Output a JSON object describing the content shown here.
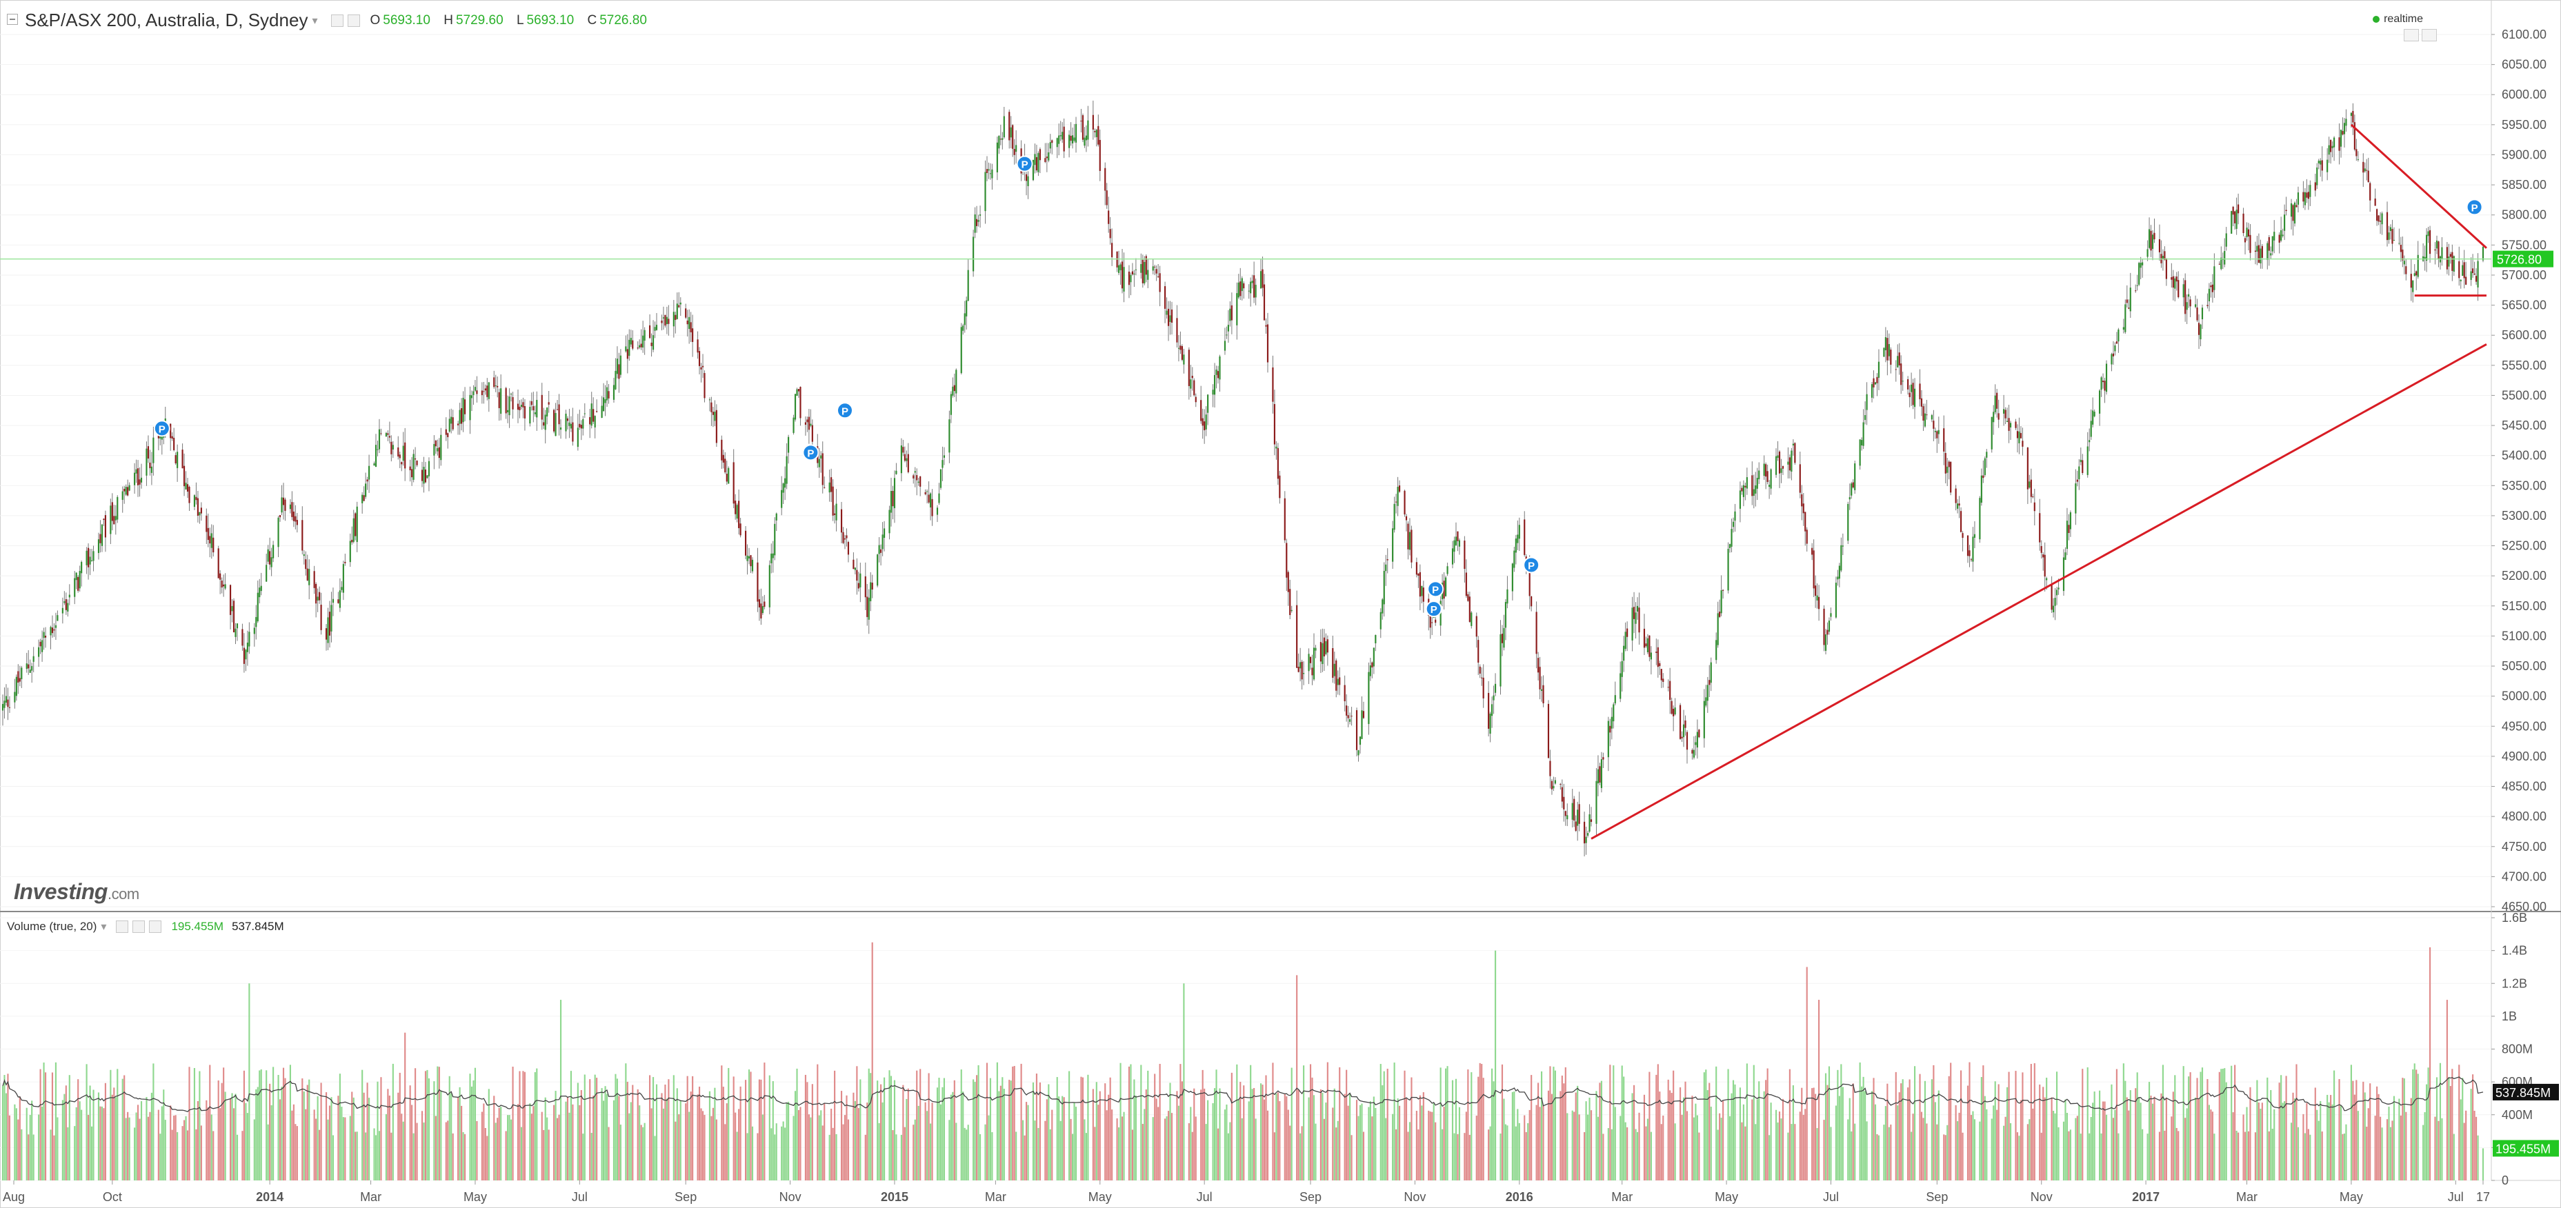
{
  "header": {
    "symbol_title": "S&P/ASX 200, Australia, D, Sydney",
    "ohlc": [
      {
        "k": "O",
        "v": "5693.10"
      },
      {
        "k": "H",
        "v": "5729.60"
      },
      {
        "k": "L",
        "v": "5693.10"
      },
      {
        "k": "C",
        "v": "5726.80"
      }
    ],
    "realtime_label": "realtime"
  },
  "volume_header": {
    "title": "Volume (true, 20)",
    "value_volume": "195.455M",
    "value_ma": "537.845M"
  },
  "logo": {
    "brand": "Investing",
    "suffix": ".com"
  },
  "colors": {
    "up": "#2e8b2e",
    "down": "#8b1a1a",
    "vol_up": "#8fd88f",
    "vol_down": "#e08a8a",
    "trendline": "#d81c24",
    "last_price": "#22c722",
    "vol_ma_line": "#444444"
  },
  "chart_data": [
    {
      "type": "candlestick",
      "title": "S&P/ASX 200, Australia, D, Sydney",
      "ylim": [
        4650,
        6100
      ],
      "y_ticks": [
        "6100.00",
        "6050.00",
        "6000.00",
        "5950.00",
        "5900.00",
        "5850.00",
        "5800.00",
        "5750.00",
        "5700.00",
        "5650.00",
        "5600.00",
        "5550.00",
        "5500.00",
        "5450.00",
        "5400.00",
        "5350.00",
        "5300.00",
        "5250.00",
        "5200.00",
        "5150.00",
        "5100.00",
        "5050.00",
        "5000.00",
        "4950.00",
        "4900.00",
        "4850.00",
        "4800.00",
        "4750.00",
        "4700.00",
        "4650.00"
      ],
      "x_ticks": [
        "Aug",
        "Oct",
        "2014",
        "Mar",
        "May",
        "Jul",
        "Sep",
        "Nov",
        "2015",
        "Mar",
        "May",
        "Jul",
        "Sep",
        "Nov",
        "2016",
        "Mar",
        "May",
        "Jul",
        "Sep",
        "Nov",
        "2017",
        "Mar",
        "May",
        "Jul",
        "17"
      ],
      "x_range": [
        "2013-07-29",
        "2017-07-17"
      ],
      "last_price": 5726.8,
      "last_price_label": "5726.80",
      "close_anchors": [
        {
          "date": "2013-07-29",
          "close": 4980
        },
        {
          "date": "2013-09-01",
          "close": 5140
        },
        {
          "date": "2013-10-01",
          "close": 5300
        },
        {
          "date": "2013-11-01",
          "close": 5440
        },
        {
          "date": "2013-11-28",
          "close": 5250
        },
        {
          "date": "2013-12-17",
          "close": 5070
        },
        {
          "date": "2014-01-10",
          "close": 5330
        },
        {
          "date": "2014-02-03",
          "close": 5100
        },
        {
          "date": "2014-03-05",
          "close": 5430
        },
        {
          "date": "2014-04-01",
          "close": 5370
        },
        {
          "date": "2014-05-01",
          "close": 5510
        },
        {
          "date": "2014-06-01",
          "close": 5480
        },
        {
          "date": "2014-07-01",
          "close": 5440
        },
        {
          "date": "2014-08-01",
          "close": 5580
        },
        {
          "date": "2014-09-01",
          "close": 5640
        },
        {
          "date": "2014-10-16",
          "close": 5140
        },
        {
          "date": "2014-11-05",
          "close": 5500
        },
        {
          "date": "2014-12-16",
          "close": 5150
        },
        {
          "date": "2015-01-05",
          "close": 5400
        },
        {
          "date": "2015-01-25",
          "close": 5300
        },
        {
          "date": "2015-02-18",
          "close": 5800
        },
        {
          "date": "2015-03-05",
          "close": 5950
        },
        {
          "date": "2015-03-20",
          "close": 5870
        },
        {
          "date": "2015-04-27",
          "close": 5960
        },
        {
          "date": "2015-05-10",
          "close": 5700
        },
        {
          "date": "2015-06-01",
          "close": 5700
        },
        {
          "date": "2015-07-01",
          "close": 5460
        },
        {
          "date": "2015-07-20",
          "close": 5670
        },
        {
          "date": "2015-08-03",
          "close": 5690
        },
        {
          "date": "2015-08-24",
          "close": 5030
        },
        {
          "date": "2015-09-10",
          "close": 5080
        },
        {
          "date": "2015-09-29",
          "close": 4920
        },
        {
          "date": "2015-10-22",
          "close": 5340
        },
        {
          "date": "2015-11-10",
          "close": 5100
        },
        {
          "date": "2015-11-26",
          "close": 5260
        },
        {
          "date": "2015-12-14",
          "close": 4960
        },
        {
          "date": "2016-01-02",
          "close": 5300
        },
        {
          "date": "2016-01-20",
          "close": 4850
        },
        {
          "date": "2016-02-10",
          "close": 4770
        },
        {
          "date": "2016-03-07",
          "close": 5150
        },
        {
          "date": "2016-03-28",
          "close": 5000
        },
        {
          "date": "2016-04-12",
          "close": 4890
        },
        {
          "date": "2016-05-09",
          "close": 5340
        },
        {
          "date": "2016-06-10",
          "close": 5400
        },
        {
          "date": "2016-06-27",
          "close": 5090
        },
        {
          "date": "2016-07-20",
          "close": 5460
        },
        {
          "date": "2016-08-01",
          "close": 5580
        },
        {
          "date": "2016-08-31",
          "close": 5450
        },
        {
          "date": "2016-09-20",
          "close": 5230
        },
        {
          "date": "2016-10-05",
          "close": 5480
        },
        {
          "date": "2016-10-20",
          "close": 5420
        },
        {
          "date": "2016-11-08",
          "close": 5150
        },
        {
          "date": "2016-11-20",
          "close": 5340
        },
        {
          "date": "2016-12-05",
          "close": 5500
        },
        {
          "date": "2017-01-03",
          "close": 5760
        },
        {
          "date": "2017-01-15",
          "close": 5700
        },
        {
          "date": "2017-02-01",
          "close": 5620
        },
        {
          "date": "2017-02-21",
          "close": 5800
        },
        {
          "date": "2017-03-10",
          "close": 5720
        },
        {
          "date": "2017-04-05",
          "close": 5840
        },
        {
          "date": "2017-05-01",
          "close": 5950
        },
        {
          "date": "2017-05-15",
          "close": 5800
        },
        {
          "date": "2017-06-05",
          "close": 5700
        },
        {
          "date": "2017-06-15",
          "close": 5760
        },
        {
          "date": "2017-06-30",
          "close": 5720
        },
        {
          "date": "2017-07-10",
          "close": 5690
        },
        {
          "date": "2017-07-17",
          "close": 5727
        }
      ],
      "trendlines": [
        {
          "name": "support",
          "from": {
            "date": "2016-02-12",
            "price": 4763
          },
          "to": {
            "date": "2017-07-19",
            "price": 5585
          }
        },
        {
          "name": "resistance",
          "from": {
            "date": "2017-05-01",
            "price": 5950
          },
          "to": {
            "date": "2017-07-19",
            "price": 5745
          }
        },
        {
          "name": "horizontal-support",
          "from": {
            "date": "2017-06-07",
            "price": 5666
          },
          "to": {
            "date": "2017-07-19",
            "price": 5666
          }
        }
      ],
      "markers": [
        {
          "date": "2013-10-30",
          "price": 5445,
          "label": "P"
        },
        {
          "date": "2014-11-13",
          "price": 5405,
          "label": "P"
        },
        {
          "date": "2014-12-03",
          "price": 5475,
          "label": "P"
        },
        {
          "date": "2015-03-18",
          "price": 5885,
          "label": "P"
        },
        {
          "date": "2015-11-13",
          "price": 5178,
          "label": "P"
        },
        {
          "date": "2015-11-12",
          "price": 5145,
          "label": "P"
        },
        {
          "date": "2016-01-08",
          "price": 5218,
          "label": "P"
        },
        {
          "date": "2017-07-12",
          "price": 5813,
          "label": "P"
        }
      ]
    },
    {
      "type": "bar",
      "title": "Volume (true, 20)",
      "ylim": [
        0,
        1600000000
      ],
      "y_ticks": [
        "1.6B",
        "1.4B",
        "1.2B",
        "1B",
        "800M",
        "600M",
        "400M",
        "200M",
        "0"
      ],
      "ma_period": 20,
      "typical_volume": 600000000,
      "last_volume": 195455000,
      "last_volume_label": "195.455M",
      "last_ma": 537845000,
      "last_ma_label": "537.845M",
      "spikes": [
        {
          "date": "2013-12-20",
          "value": 1200000000
        },
        {
          "date": "2014-03-21",
          "value": 900000000
        },
        {
          "date": "2014-06-20",
          "value": 1100000000
        },
        {
          "date": "2014-12-19",
          "value": 1450000000
        },
        {
          "date": "2015-06-19",
          "value": 1200000000
        },
        {
          "date": "2015-08-24",
          "value": 1250000000
        },
        {
          "date": "2015-12-18",
          "value": 1400000000
        },
        {
          "date": "2016-06-17",
          "value": 1300000000
        },
        {
          "date": "2016-06-24",
          "value": 1100000000
        },
        {
          "date": "2017-06-16",
          "value": 1420000000
        },
        {
          "date": "2017-06-26",
          "value": 1100000000
        }
      ]
    }
  ]
}
